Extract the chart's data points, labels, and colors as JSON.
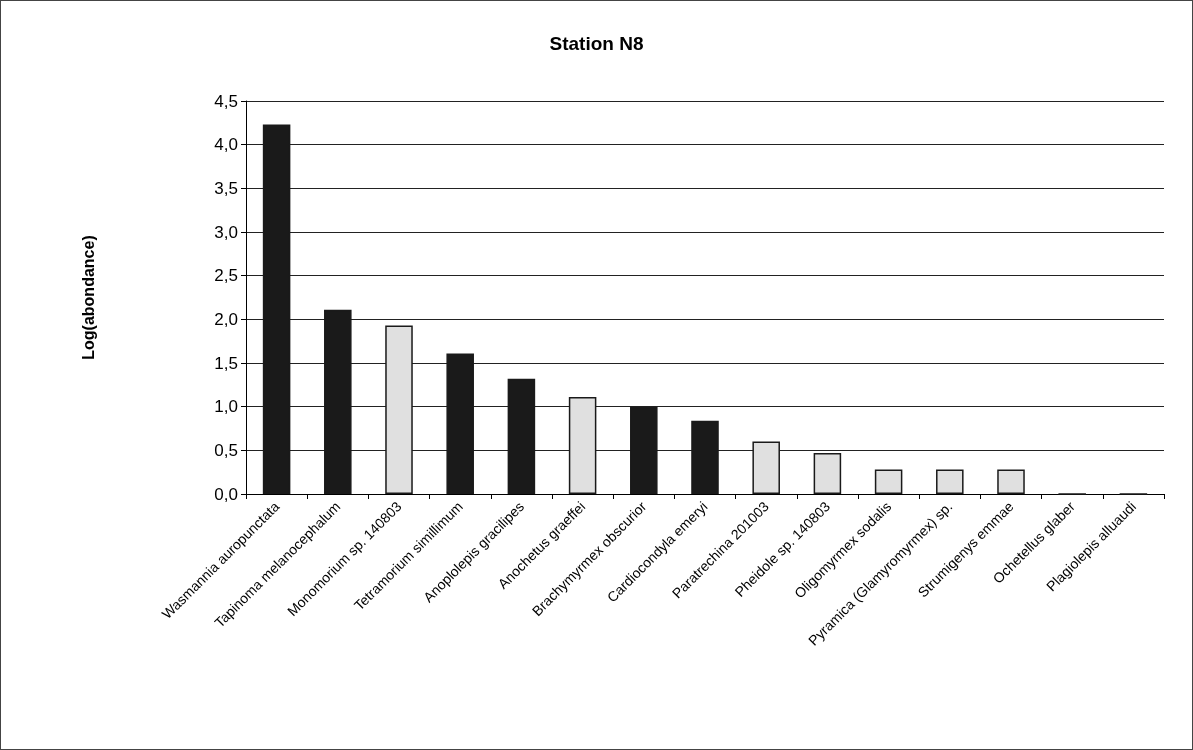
{
  "chart_data": {
    "type": "bar",
    "title": "Station N8",
    "ylabel": "Log(abondance)",
    "categories": [
      "Wasmannia auropunctata",
      "Tapinoma melanocephalum",
      "Monomorium sp. 140803",
      "Tetramorium simillimum",
      "Anoplolepis gracilipes",
      "Anochetus graeffei",
      "Brachymyrmex obscurior",
      "Cardiocondyla emeryi",
      "Paratrechina 201003",
      "Pheidole sp. 140803",
      "Oligomyrmex sodalis",
      "Pyramica (Glamyromyrmex) sp.",
      "Strumigenys emmae",
      "Ochetellus glaber",
      "Plagiolepis alluaudi"
    ],
    "values": [
      4.23,
      2.11,
      1.93,
      1.61,
      1.32,
      1.11,
      1.0,
      0.84,
      0.6,
      0.47,
      0.28,
      0.28,
      0.28,
      0,
      0
    ],
    "colors": [
      "#1a1a1a",
      "#1a1a1a",
      "#e0e0e0",
      "#1a1a1a",
      "#1a1a1a",
      "#e0e0e0",
      "#1a1a1a",
      "#1a1a1a",
      "#e0e0e0",
      "#e0e0e0",
      "#e0e0e0",
      "#e0e0e0",
      "#e0e0e0",
      "#1a1a1a",
      "#1a1a1a"
    ],
    "ylim": [
      0,
      4.5
    ],
    "yticks": [
      {
        "value": 0,
        "label": "0,0"
      },
      {
        "value": 0.5,
        "label": "0,5"
      },
      {
        "value": 1,
        "label": "1,0"
      },
      {
        "value": 1.5,
        "label": "1,5"
      },
      {
        "value": 2,
        "label": "2,0"
      },
      {
        "value": 2.5,
        "label": "2,5"
      },
      {
        "value": 3,
        "label": "3,0"
      },
      {
        "value": 3.5,
        "label": "3,5"
      },
      {
        "value": 4,
        "label": "4,0"
      },
      {
        "value": 4.5,
        "label": "4,5"
      }
    ],
    "grid": "y"
  }
}
